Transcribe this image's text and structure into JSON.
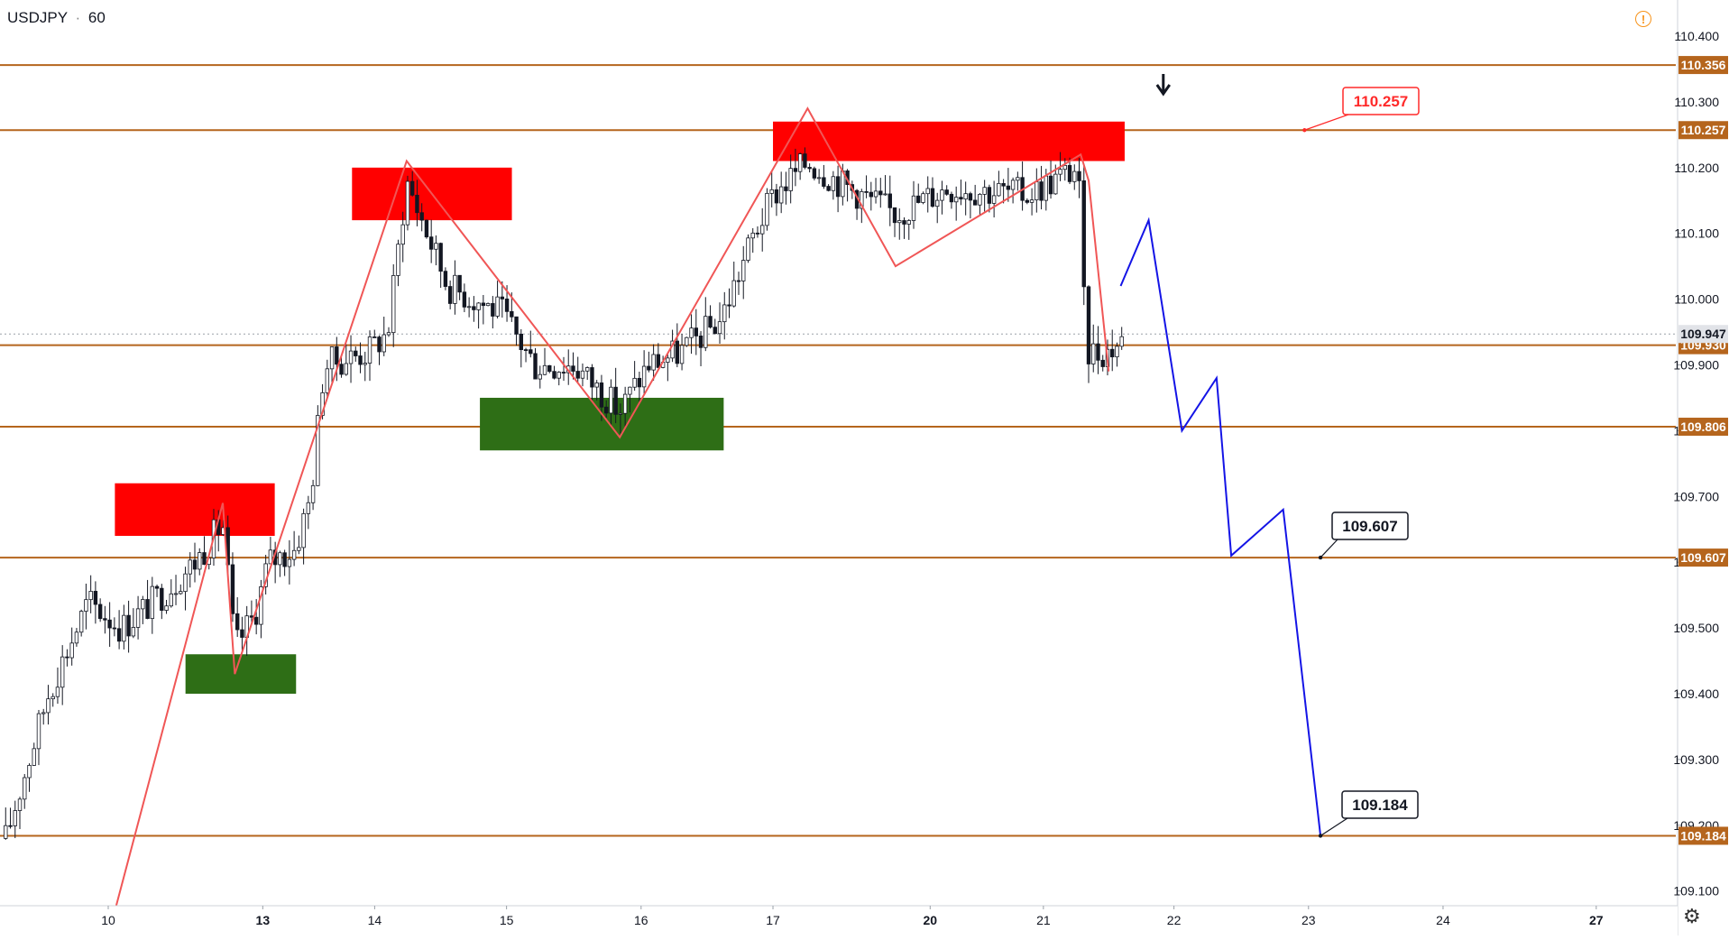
{
  "header": {
    "symbol": "USDJPY",
    "separator": "·",
    "interval": "60"
  },
  "colors": {
    "level_line": "#b5651d",
    "resistance_zone": "#ff0000",
    "support_zone": "#2e6e16",
    "zigzag": "#f05656",
    "projection": "#1414e6",
    "candle": "#131722",
    "axis_text": "#131722",
    "alert": "#f7931a"
  },
  "icons": {
    "alert": "alert-circle-icon",
    "settings": "gear-icon",
    "arrow": "arrow-down-icon"
  },
  "alert_symbol": "!",
  "settings_symbol": "⚙",
  "chart_data": {
    "type": "candlestick",
    "symbol": "USDJPY",
    "interval": "60",
    "y_axis": {
      "ylim": [
        109.07,
        110.435
      ],
      "ticks": [
        "110.400",
        "110.300",
        "110.200",
        "110.100",
        "110.000",
        "109.900",
        "109.800",
        "109.700",
        "109.600",
        "109.500",
        "109.400",
        "109.300",
        "109.200",
        "109.100"
      ]
    },
    "x_axis": {
      "ticks": [
        {
          "label": "10",
          "day": 0.0
        },
        {
          "label": "13",
          "day": 1.16
        },
        {
          "label": "14",
          "day": 2.0
        },
        {
          "label": "15",
          "day": 2.99
        },
        {
          "label": "16",
          "day": 4.0
        },
        {
          "label": "17",
          "day": 4.99
        },
        {
          "label": "20",
          "day": 6.17
        },
        {
          "label": "21",
          "day": 7.02
        },
        {
          "label": "22",
          "day": 8.0
        },
        {
          "label": "23",
          "day": 9.01
        },
        {
          "label": "24",
          "day": 10.02
        },
        {
          "label": "27",
          "day": 11.17
        }
      ]
    },
    "horizontal_levels": [
      {
        "price": 110.356,
        "label": "110.356"
      },
      {
        "price": 110.257,
        "label": "110.257"
      },
      {
        "price": 109.93,
        "label": "109.930"
      },
      {
        "price": 109.806,
        "label": "109.806"
      },
      {
        "price": 109.607,
        "label": "109.607"
      },
      {
        "price": 109.184,
        "label": "109.184"
      }
    ],
    "current_price": {
      "price": 109.947,
      "label": "109.947"
    },
    "resistance_zones": [
      {
        "day_start": 0.05,
        "day_end": 1.25,
        "price_top": 109.72,
        "price_bottom": 109.64
      },
      {
        "day_start": 1.83,
        "day_end": 3.03,
        "price_top": 110.2,
        "price_bottom": 110.12
      },
      {
        "day_start": 4.99,
        "day_end": 7.63,
        "price_top": 110.27,
        "price_bottom": 110.21
      }
    ],
    "support_zones": [
      {
        "day_start": 0.58,
        "day_end": 1.41,
        "price_top": 109.46,
        "price_bottom": 109.4
      },
      {
        "day_start": 2.79,
        "day_end": 4.62,
        "price_top": 109.85,
        "price_bottom": 109.77
      }
    ],
    "zigzag": [
      {
        "day": 0.05,
        "price": 109.07
      },
      {
        "day": 0.86,
        "price": 109.69
      },
      {
        "day": 0.95,
        "price": 109.43
      },
      {
        "day": 2.24,
        "price": 110.21
      },
      {
        "day": 3.84,
        "price": 109.79
      },
      {
        "day": 5.25,
        "price": 110.29
      },
      {
        "day": 5.91,
        "price": 110.05
      },
      {
        "day": 7.3,
        "price": 110.22
      },
      {
        "day": 7.36,
        "price": 110.18
      },
      {
        "day": 7.51,
        "price": 109.89
      }
    ],
    "projection": [
      {
        "day": 7.6,
        "price": 110.02
      },
      {
        "day": 7.81,
        "price": 110.12
      },
      {
        "day": 8.06,
        "price": 109.8
      },
      {
        "day": 8.32,
        "price": 109.88
      },
      {
        "day": 8.43,
        "price": 109.61
      },
      {
        "day": 8.82,
        "price": 109.68
      },
      {
        "day": 9.1,
        "price": 109.184
      }
    ],
    "price_callouts": [
      {
        "label": "110.257",
        "style": "red"
      },
      {
        "label": "109.607",
        "style": "black"
      },
      {
        "label": "109.184",
        "style": "black"
      }
    ],
    "candles": {
      "day_start": -0.77,
      "day_end": 7.63,
      "seed": 17,
      "anchors": [
        {
          "day": -0.77,
          "price": 109.18
        },
        {
          "day": -0.45,
          "price": 109.4
        },
        {
          "day": -0.15,
          "price": 109.54
        },
        {
          "day": 0.1,
          "price": 109.5
        },
        {
          "day": 0.45,
          "price": 109.56
        },
        {
          "day": 0.65,
          "price": 109.6
        },
        {
          "day": 0.86,
          "price": 109.66
        },
        {
          "day": 0.95,
          "price": 109.47
        },
        {
          "day": 1.1,
          "price": 109.52
        },
        {
          "day": 1.2,
          "price": 109.6
        },
        {
          "day": 1.4,
          "price": 109.62
        },
        {
          "day": 1.52,
          "price": 109.7
        },
        {
          "day": 1.62,
          "price": 109.9
        },
        {
          "day": 1.95,
          "price": 109.92
        },
        {
          "day": 2.1,
          "price": 109.95
        },
        {
          "day": 2.24,
          "price": 110.18
        },
        {
          "day": 2.55,
          "price": 110.02
        },
        {
          "day": 2.95,
          "price": 109.98
        },
        {
          "day": 3.2,
          "price": 109.9
        },
        {
          "day": 3.5,
          "price": 109.9
        },
        {
          "day": 3.84,
          "price": 109.83
        },
        {
          "day": 4.05,
          "price": 109.9
        },
        {
          "day": 4.3,
          "price": 109.92
        },
        {
          "day": 4.6,
          "price": 109.97
        },
        {
          "day": 4.85,
          "price": 110.1
        },
        {
          "day": 5.0,
          "price": 110.16
        },
        {
          "day": 5.25,
          "price": 110.21
        },
        {
          "day": 5.55,
          "price": 110.17
        },
        {
          "day": 5.91,
          "price": 110.13
        },
        {
          "day": 6.3,
          "price": 110.17
        },
        {
          "day": 6.9,
          "price": 110.16
        },
        {
          "day": 7.28,
          "price": 110.2
        },
        {
          "day": 7.34,
          "price": 109.92
        },
        {
          "day": 7.5,
          "price": 109.92
        },
        {
          "day": 7.63,
          "price": 109.94
        }
      ]
    }
  }
}
